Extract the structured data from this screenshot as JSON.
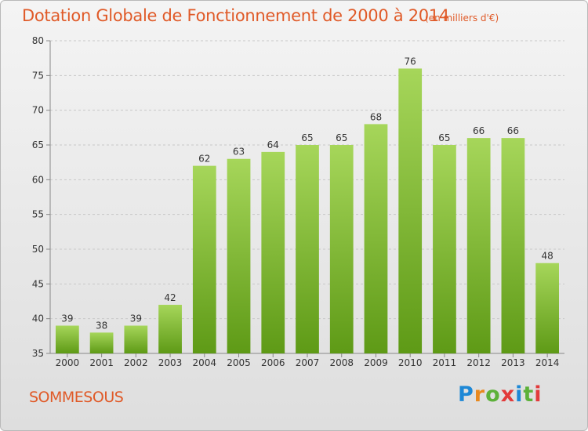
{
  "header": {
    "title": "Dotation Globale de Fonctionnement de 2000 à 2014",
    "unit": "(en milliers d'€)"
  },
  "footer": {
    "place": "SOMMESOUS",
    "logo_text": "Proxiti",
    "logo_colors": [
      "#1e88d6",
      "#e8891f",
      "#5db13a",
      "#e23b3b",
      "#1e88d6",
      "#5db13a",
      "#e23b3b"
    ]
  },
  "colors": {
    "title": "#e05a28",
    "bar_top": "#a6d65a",
    "bar_bottom": "#5e9a16",
    "grid": "#c8c8c8"
  },
  "chart_data": {
    "type": "bar",
    "title": "Dotation Globale de Fonctionnement de 2000 à 2014",
    "subtitle": "(en milliers d'€)",
    "categories": [
      "2000",
      "2001",
      "2002",
      "2003",
      "2004",
      "2005",
      "2006",
      "2007",
      "2008",
      "2009",
      "2010",
      "2011",
      "2012",
      "2013",
      "2014"
    ],
    "values": [
      39,
      38,
      39,
      42,
      62,
      63,
      64,
      65,
      65,
      68,
      76,
      65,
      66,
      66,
      48
    ],
    "xlabel": "",
    "ylabel": "",
    "ylim": [
      35,
      80
    ],
    "yticks": [
      35,
      40,
      45,
      50,
      55,
      60,
      65,
      70,
      75,
      80
    ],
    "grid": true,
    "data_labels": true
  }
}
